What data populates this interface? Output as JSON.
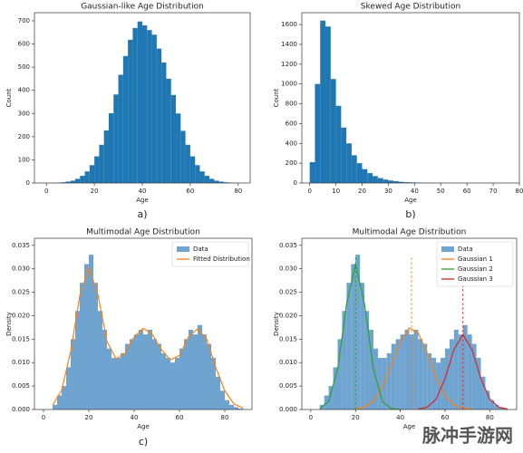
{
  "chart_data": [
    {
      "type": "histogram",
      "title": "Gaussian-like Age Distribution",
      "xlabel": "Age",
      "ylabel": "Count",
      "caption": "a)",
      "color": "#1f77b4",
      "bins": [
        0,
        2,
        4,
        6,
        8,
        10,
        12,
        14,
        16,
        18,
        20,
        22,
        24,
        26,
        28,
        30,
        32,
        34,
        36,
        38,
        40,
        42,
        44,
        46,
        48,
        50,
        52,
        54,
        56,
        58,
        60,
        62,
        64,
        66,
        68,
        70,
        72,
        74,
        76,
        78,
        80
      ],
      "values": [
        0,
        1,
        2,
        3,
        6,
        10,
        18,
        31,
        50,
        77,
        115,
        165,
        227,
        301,
        382,
        467,
        548,
        618,
        669,
        697,
        680,
        660,
        640,
        580,
        520,
        450,
        380,
        300,
        225,
        165,
        115,
        77,
        50,
        31,
        18,
        10,
        6,
        3,
        2,
        1
      ],
      "xlim": [
        -5,
        85
      ],
      "ylim": [
        0,
        735
      ],
      "xticks": [
        0,
        20,
        40,
        60,
        80
      ],
      "yticks": [
        0,
        100,
        200,
        300,
        400,
        500,
        600,
        700
      ]
    },
    {
      "type": "histogram",
      "title": "Skewed Age Distribution",
      "xlabel": "Age",
      "ylabel": "Count",
      "caption": "b)",
      "color": "#1f77b4",
      "bins": [
        0,
        2,
        4,
        6,
        8,
        10,
        12,
        14,
        16,
        18,
        20,
        22,
        24,
        26,
        28,
        30,
        32,
        34,
        36,
        38,
        40,
        42,
        44,
        46,
        48,
        50,
        52,
        54,
        56,
        58,
        60,
        62,
        64,
        66,
        68,
        70,
        72,
        74,
        76
      ],
      "values": [
        210,
        1000,
        1640,
        1580,
        1050,
        780,
        560,
        400,
        280,
        200,
        140,
        100,
        70,
        50,
        35,
        25,
        18,
        12,
        8,
        6,
        4,
        3,
        2,
        2,
        1,
        1,
        0,
        0,
        0,
        0,
        0,
        0,
        0,
        0,
        0,
        0,
        0,
        1
      ],
      "xlim": [
        -3,
        80
      ],
      "ylim": [
        0,
        1720
      ],
      "xticks": [
        0,
        10,
        20,
        30,
        40,
        50,
        60,
        70,
        80
      ],
      "yticks": [
        0,
        200,
        400,
        600,
        800,
        1000,
        1200,
        1400,
        1600
      ]
    },
    {
      "type": "histogram",
      "title": "Multimodal Age Distribution",
      "xlabel": "Age",
      "ylabel": "Density",
      "caption": "c)",
      "name": "Data",
      "color": "#6fa3d0",
      "legend": "upper right",
      "bins": [
        4,
        6,
        8,
        10,
        12,
        14,
        16,
        18,
        20,
        22,
        24,
        26,
        28,
        30,
        32,
        34,
        36,
        38,
        40,
        42,
        44,
        46,
        48,
        50,
        52,
        54,
        56,
        58,
        60,
        62,
        64,
        66,
        68,
        70,
        72,
        74,
        76,
        78,
        80,
        82,
        84,
        86,
        88
      ],
      "values": [
        0.001,
        0.003,
        0.005,
        0.009,
        0.015,
        0.021,
        0.027,
        0.031,
        0.033,
        0.027,
        0.021,
        0.017,
        0.013,
        0.011,
        0.011,
        0.012,
        0.014,
        0.015,
        0.016,
        0.017,
        0.016,
        0.017,
        0.015,
        0.014,
        0.012,
        0.011,
        0.01,
        0.011,
        0.013,
        0.015,
        0.017,
        0.016,
        0.018,
        0.016,
        0.014,
        0.011,
        0.007,
        0.004,
        0.002,
        0.001,
        0.0005,
        0.0002
      ],
      "lines": [
        {
          "name": "Fitted Distribution",
          "color": "#ff7f0e",
          "x": [
            4,
            8,
            12,
            16,
            20,
            24,
            28,
            32,
            36,
            40,
            44,
            48,
            52,
            56,
            60,
            64,
            68,
            72,
            76,
            80,
            84,
            88
          ],
          "values": [
            0.0009,
            0.0041,
            0.0124,
            0.0242,
            0.0302,
            0.0245,
            0.0145,
            0.0108,
            0.012,
            0.0155,
            0.0173,
            0.016,
            0.0128,
            0.0106,
            0.0115,
            0.0155,
            0.0172,
            0.015,
            0.009,
            0.004,
            0.0012,
            0.0003
          ]
        }
      ],
      "xlim": [
        -4,
        92
      ],
      "ylim": [
        0,
        0.0365
      ],
      "xticks": [
        0,
        20,
        40,
        60,
        80
      ],
      "yticks": [
        {
          "value": 0,
          "label": "0.000"
        },
        0.005,
        {
          "value": 0.01,
          "label": "0.010"
        },
        0.015,
        {
          "value": 0.02,
          "label": "0.020"
        },
        0.025,
        {
          "value": 0.03,
          "label": "0.030"
        },
        0.035
      ]
    },
    {
      "type": "histogram",
      "title": "Multimodal Age Distribution",
      "xlabel": "Age",
      "ylabel": "Density",
      "name": "Data",
      "color": "#6fa3d0",
      "legend": "upper right",
      "bins": [
        4,
        6,
        8,
        10,
        12,
        14,
        16,
        18,
        20,
        22,
        24,
        26,
        28,
        30,
        32,
        34,
        36,
        38,
        40,
        42,
        44,
        46,
        48,
        50,
        52,
        54,
        56,
        58,
        60,
        62,
        64,
        66,
        68,
        70,
        72,
        74,
        76,
        78,
        80,
        82,
        84,
        86,
        88
      ],
      "values": [
        0.001,
        0.003,
        0.005,
        0.009,
        0.015,
        0.021,
        0.027,
        0.031,
        0.033,
        0.027,
        0.021,
        0.017,
        0.013,
        0.011,
        0.011,
        0.012,
        0.014,
        0.015,
        0.016,
        0.017,
        0.016,
        0.017,
        0.015,
        0.014,
        0.012,
        0.011,
        0.01,
        0.011,
        0.013,
        0.015,
        0.017,
        0.016,
        0.018,
        0.016,
        0.014,
        0.011,
        0.007,
        0.004,
        0.002,
        0.001,
        0.0005,
        0.0002
      ],
      "lines": [
        {
          "name": "Gaussian 1",
          "color": "#ff7f0e",
          "mean": 45,
          "x": [
            20,
            24,
            28,
            32,
            36,
            40,
            44,
            48,
            52,
            56,
            60,
            64,
            68,
            72
          ],
          "values": [
            0.0001,
            0.0006,
            0.0018,
            0.0047,
            0.0093,
            0.0144,
            0.0174,
            0.0163,
            0.012,
            0.0068,
            0.003,
            0.001,
            0.0003,
            0.0001
          ]
        },
        {
          "name": "Gaussian 2",
          "color": "#2ca02c",
          "mean": 20,
          "x": [
            4,
            8,
            12,
            16,
            20,
            24,
            28,
            32,
            36,
            40
          ],
          "values": [
            0.0002,
            0.0017,
            0.0086,
            0.0225,
            0.031,
            0.0225,
            0.0086,
            0.0017,
            0.0002,
            0
          ]
        },
        {
          "name": "Gaussian 3",
          "color": "#d62728",
          "mean": 68,
          "x": [
            48,
            52,
            56,
            60,
            64,
            68,
            72,
            76,
            80,
            84,
            88
          ],
          "values": [
            0.0001,
            0.0005,
            0.0022,
            0.0066,
            0.0128,
            0.016,
            0.0128,
            0.0066,
            0.0022,
            0.0005,
            0.0001
          ]
        }
      ],
      "xlim": [
        -4,
        92
      ],
      "ylim": [
        0,
        0.0365
      ],
      "xticks": [
        0,
        20,
        40,
        60,
        80
      ],
      "yticks": [
        {
          "value": 0,
          "label": "0.000"
        },
        0.005,
        {
          "value": 0.01,
          "label": "0.010"
        },
        0.015,
        {
          "value": 0.02,
          "label": "0.020"
        },
        0.025,
        {
          "value": 0.03,
          "label": "0.030"
        },
        0.035
      ]
    }
  ],
  "watermark": "脉冲手游网"
}
